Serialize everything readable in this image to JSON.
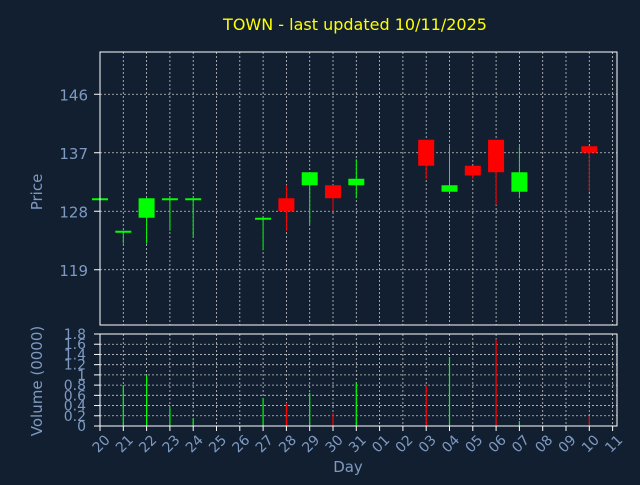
{
  "chart_data": {
    "type": "candlestick",
    "title": "TOWN - last updated 10/11/2025",
    "colors": {
      "background": "#111f30",
      "title": "#ffff00",
      "axis_text": "#7f9ac1",
      "frame": "#ffffff",
      "grid": "#c8c8c8",
      "up": "#00ff00",
      "down": "#ff0000"
    },
    "grid": true,
    "xlabel": "Day",
    "x_ticks": [
      "20",
      "21",
      "22",
      "23",
      "24",
      "25",
      "26",
      "27",
      "28",
      "29",
      "30",
      "31",
      "01",
      "02",
      "03",
      "04",
      "05",
      "06",
      "07",
      "08",
      "09",
      "10",
      "11"
    ],
    "price_panel": {
      "ylabel": "Price",
      "ylim": [
        110.5,
        152.5
      ],
      "y_ticks": [
        119,
        128,
        137,
        146
      ],
      "candles": [
        {
          "x": "20",
          "open": 130.0,
          "high": 130.0,
          "low": 130.0,
          "close": 130.0
        },
        {
          "x": "21",
          "open": 125.0,
          "high": 125.0,
          "low": 123.0,
          "close": 125.0
        },
        {
          "x": "22",
          "open": 127.0,
          "high": 130.0,
          "low": 123.0,
          "close": 130.0
        },
        {
          "x": "23",
          "open": 130.0,
          "high": 130.0,
          "low": 125.0,
          "close": 130.0
        },
        {
          "x": "24",
          "open": 130.0,
          "high": 130.0,
          "low": 124.0,
          "close": 130.0
        },
        {
          "x": "27",
          "open": 127.0,
          "high": 127.0,
          "low": 122.0,
          "close": 127.0
        },
        {
          "x": "28",
          "open": 130.0,
          "high": 132.0,
          "low": 125.0,
          "close": 128.0
        },
        {
          "x": "29",
          "open": 132.0,
          "high": 134.0,
          "low": 126.0,
          "close": 134.0
        },
        {
          "x": "30",
          "open": 132.0,
          "high": 132.0,
          "low": 128.0,
          "close": 130.0
        },
        {
          "x": "31",
          "open": 132.0,
          "high": 136.0,
          "low": 130.0,
          "close": 133.0
        },
        {
          "x": "03",
          "open": 139.0,
          "high": 139.0,
          "low": 133.0,
          "close": 135.0
        },
        {
          "x": "04",
          "open": 131.0,
          "high": 138.0,
          "low": 131.0,
          "close": 132.0
        },
        {
          "x": "05",
          "open": 135.0,
          "high": 135.0,
          "low": 133.0,
          "close": 133.5
        },
        {
          "x": "06",
          "open": 139.0,
          "high": 139.0,
          "low": 129.0,
          "close": 134.0
        },
        {
          "x": "07",
          "open": 131.0,
          "high": 138.0,
          "low": 130.0,
          "close": 134.0
        },
        {
          "x": "10",
          "open": 138.0,
          "high": 138.0,
          "low": 131.0,
          "close": 137.0
        }
      ]
    },
    "volume_panel": {
      "ylabel": "Volume (0000)",
      "ylim": [
        0,
        1.8
      ],
      "y_ticks": [
        "0",
        "0.2",
        "0.4",
        "0.6",
        "0.8",
        "1",
        "1.2",
        "1.4",
        "1.6",
        "1.8"
      ],
      "bars": [
        {
          "x": "21",
          "value": 0.8,
          "direction": "up"
        },
        {
          "x": "22",
          "value": 1.0,
          "direction": "up"
        },
        {
          "x": "23",
          "value": 0.35,
          "direction": "up"
        },
        {
          "x": "24",
          "value": 0.15,
          "direction": "up"
        },
        {
          "x": "27",
          "value": 0.55,
          "direction": "up"
        },
        {
          "x": "28",
          "value": 0.45,
          "direction": "down"
        },
        {
          "x": "29",
          "value": 0.65,
          "direction": "up"
        },
        {
          "x": "30",
          "value": 0.25,
          "direction": "down"
        },
        {
          "x": "31",
          "value": 0.85,
          "direction": "up"
        },
        {
          "x": "03",
          "value": 0.8,
          "direction": "down"
        },
        {
          "x": "04",
          "value": 1.35,
          "direction": "up"
        },
        {
          "x": "06",
          "value": 1.7,
          "direction": "down"
        },
        {
          "x": "07",
          "value": 0.1,
          "direction": "up"
        },
        {
          "x": "10",
          "value": 0.2,
          "direction": "down"
        }
      ]
    }
  }
}
